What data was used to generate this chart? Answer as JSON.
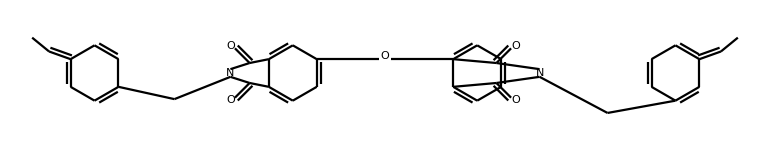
{
  "bg_color": "#ffffff",
  "line_color": "#000000",
  "lw": 1.6,
  "figsize": [
    7.7,
    1.46
  ],
  "dpi": 100,
  "xlim": [
    0,
    10
  ],
  "ylim": [
    0,
    1.9
  ],
  "ring_r": 0.36,
  "off": 0.052,
  "fontsize_hetero": 8.0
}
